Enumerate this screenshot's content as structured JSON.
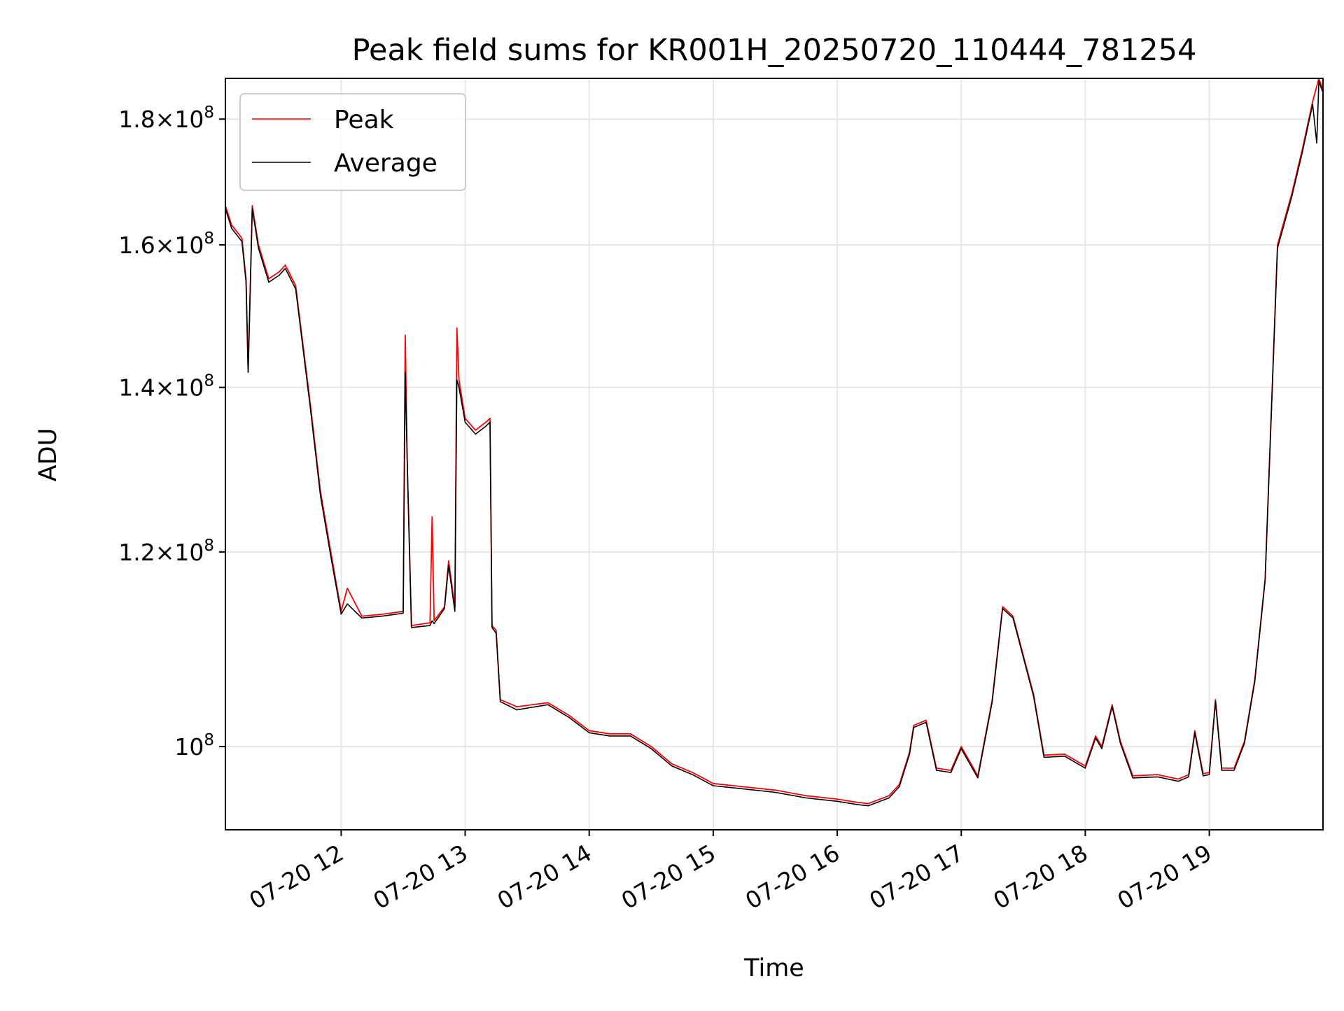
{
  "chart_data": {
    "type": "line",
    "title": "Peak field sums for KR001H_20250720_110444_781254",
    "xlabel": "Time",
    "ylabel": "ADU",
    "y_scale": "log",
    "xlim": [
      "2025-07-20 11:04",
      "2025-07-20 19:55"
    ],
    "ylim": [
      92500000,
      187000000
    ],
    "grid": true,
    "legend_position": "upper left",
    "x_tick_labels": [
      "07-20 12",
      "07-20 13",
      "07-20 14",
      "07-20 15",
      "07-20 16",
      "07-20 17",
      "07-20 18",
      "07-20 19"
    ],
    "y_ticks": [
      {
        "mantissa": "1.8",
        "exp": "8",
        "value": 180000000
      },
      {
        "mantissa": "1.6",
        "exp": "8",
        "value": 160000000
      },
      {
        "mantissa": "1.4",
        "exp": "8",
        "value": 140000000
      },
      {
        "mantissa": "1.2",
        "exp": "8",
        "value": 120000000
      },
      {
        "mantissa": "",
        "exp": "8",
        "value": 100000000
      }
    ],
    "series": [
      {
        "name": "Peak",
        "color": "#ff0000",
        "points": [
          [
            "2025-07-20 11:04",
            166000000
          ],
          [
            "2025-07-20 11:07",
            163000000
          ],
          [
            "2025-07-20 11:12",
            161000000
          ],
          [
            "2025-07-20 11:14",
            155000000
          ],
          [
            "2025-07-20 11:15",
            142000000
          ],
          [
            "2025-07-20 11:17",
            166000000
          ],
          [
            "2025-07-20 11:20",
            160000000
          ],
          [
            "2025-07-20 11:25",
            155000000
          ],
          [
            "2025-07-20 11:30",
            156000000
          ],
          [
            "2025-07-20 11:33",
            157000000
          ],
          [
            "2025-07-20 11:38",
            154000000
          ],
          [
            "2025-07-20 11:45",
            138000000
          ],
          [
            "2025-07-20 11:50",
            127000000
          ],
          [
            "2025-07-20 11:55",
            120000000
          ],
          [
            "2025-07-20 12:00",
            113500000
          ],
          [
            "2025-07-20 12:03",
            116000000
          ],
          [
            "2025-07-20 12:10",
            113000000
          ],
          [
            "2025-07-20 12:20",
            113200000
          ],
          [
            "2025-07-20 12:30",
            113500000
          ],
          [
            "2025-07-20 12:31",
            147000000
          ],
          [
            "2025-07-20 12:32",
            130000000
          ],
          [
            "2025-07-20 12:34",
            112000000
          ],
          [
            "2025-07-20 12:43",
            112300000
          ],
          [
            "2025-07-20 12:44",
            124000000
          ],
          [
            "2025-07-20 12:45",
            112500000
          ],
          [
            "2025-07-20 12:50",
            114000000
          ],
          [
            "2025-07-20 12:52",
            119000000
          ],
          [
            "2025-07-20 12:55",
            114000000
          ],
          [
            "2025-07-20 12:56",
            148000000
          ],
          [
            "2025-07-20 12:57",
            141000000
          ],
          [
            "2025-07-20 13:00",
            136000000
          ],
          [
            "2025-07-20 13:05",
            134500000
          ],
          [
            "2025-07-20 13:10",
            135500000
          ],
          [
            "2025-07-20 13:12",
            136000000
          ],
          [
            "2025-07-20 13:13",
            112000000
          ],
          [
            "2025-07-20 13:15",
            111500000
          ],
          [
            "2025-07-20 13:17",
            104500000
          ],
          [
            "2025-07-20 13:25",
            103800000
          ],
          [
            "2025-07-20 13:40",
            104200000
          ],
          [
            "2025-07-20 13:50",
            103000000
          ],
          [
            "2025-07-20 14:00",
            101500000
          ],
          [
            "2025-07-20 14:10",
            101200000
          ],
          [
            "2025-07-20 14:20",
            101200000
          ],
          [
            "2025-07-20 14:30",
            100000000
          ],
          [
            "2025-07-20 14:40",
            98400000
          ],
          [
            "2025-07-20 14:50",
            97600000
          ],
          [
            "2025-07-20 15:00",
            96600000
          ],
          [
            "2025-07-20 15:15",
            96300000
          ],
          [
            "2025-07-20 15:30",
            96000000
          ],
          [
            "2025-07-20 15:45",
            95500000
          ],
          [
            "2025-07-20 16:00",
            95200000
          ],
          [
            "2025-07-20 16:10",
            94900000
          ],
          [
            "2025-07-20 16:15",
            94800000
          ],
          [
            "2025-07-20 16:25",
            95500000
          ],
          [
            "2025-07-20 16:30",
            96500000
          ],
          [
            "2025-07-20 16:35",
            99500000
          ],
          [
            "2025-07-20 16:37",
            102000000
          ],
          [
            "2025-07-20 16:43",
            102500000
          ],
          [
            "2025-07-20 16:48",
            98000000
          ],
          [
            "2025-07-20 16:55",
            97800000
          ],
          [
            "2025-07-20 17:00",
            100000000
          ],
          [
            "2025-07-20 17:08",
            97300000
          ],
          [
            "2025-07-20 17:15",
            104500000
          ],
          [
            "2025-07-20 17:20",
            114000000
          ],
          [
            "2025-07-20 17:25",
            113000000
          ],
          [
            "2025-07-20 17:35",
            105000000
          ],
          [
            "2025-07-20 17:40",
            99200000
          ],
          [
            "2025-07-20 17:50",
            99300000
          ],
          [
            "2025-07-20 18:00",
            98200000
          ],
          [
            "2025-07-20 18:05",
            101000000
          ],
          [
            "2025-07-20 18:08",
            100000000
          ],
          [
            "2025-07-20 18:13",
            104000000
          ],
          [
            "2025-07-20 18:17",
            100500000
          ],
          [
            "2025-07-20 18:23",
            97300000
          ],
          [
            "2025-07-20 18:35",
            97400000
          ],
          [
            "2025-07-20 18:45",
            97000000
          ],
          [
            "2025-07-20 18:50",
            97400000
          ],
          [
            "2025-07-20 18:53",
            101500000
          ],
          [
            "2025-07-20 18:57",
            97500000
          ],
          [
            "2025-07-20 19:00",
            97600000
          ],
          [
            "2025-07-20 19:03",
            104500000
          ],
          [
            "2025-07-20 19:06",
            98000000
          ],
          [
            "2025-07-20 19:12",
            98000000
          ],
          [
            "2025-07-20 19:17",
            100500000
          ],
          [
            "2025-07-20 19:22",
            106500000
          ],
          [
            "2025-07-20 19:27",
            117000000
          ],
          [
            "2025-07-20 19:33",
            160000000
          ],
          [
            "2025-07-20 19:40",
            168000000
          ],
          [
            "2025-07-20 19:45",
            175000000
          ],
          [
            "2025-07-20 19:50",
            183000000
          ],
          [
            "2025-07-20 19:53",
            187000000
          ],
          [
            "2025-07-20 19:55",
            185000000
          ]
        ]
      },
      {
        "name": "Average",
        "color": "#000000",
        "points": [
          [
            "2025-07-20 11:04",
            165500000
          ],
          [
            "2025-07-20 11:07",
            162500000
          ],
          [
            "2025-07-20 11:12",
            160500000
          ],
          [
            "2025-07-20 11:14",
            154500000
          ],
          [
            "2025-07-20 11:15",
            142000000
          ],
          [
            "2025-07-20 11:17",
            165500000
          ],
          [
            "2025-07-20 11:20",
            159500000
          ],
          [
            "2025-07-20 11:25",
            154500000
          ],
          [
            "2025-07-20 11:30",
            155500000
          ],
          [
            "2025-07-20 11:33",
            156500000
          ],
          [
            "2025-07-20 11:38",
            153500000
          ],
          [
            "2025-07-20 11:45",
            137500000
          ],
          [
            "2025-07-20 11:50",
            126500000
          ],
          [
            "2025-07-20 11:55",
            119500000
          ],
          [
            "2025-07-20 12:00",
            113200000
          ],
          [
            "2025-07-20 12:03",
            114300000
          ],
          [
            "2025-07-20 12:10",
            112800000
          ],
          [
            "2025-07-20 12:20",
            113000000
          ],
          [
            "2025-07-20 12:30",
            113300000
          ],
          [
            "2025-07-20 12:31",
            142000000
          ],
          [
            "2025-07-20 12:32",
            130000000
          ],
          [
            "2025-07-20 12:34",
            111800000
          ],
          [
            "2025-07-20 12:43",
            112000000
          ],
          [
            "2025-07-20 12:44",
            112500000
          ],
          [
            "2025-07-20 12:45",
            112200000
          ],
          [
            "2025-07-20 12:50",
            113800000
          ],
          [
            "2025-07-20 12:52",
            118500000
          ],
          [
            "2025-07-20 12:55",
            113500000
          ],
          [
            "2025-07-20 12:56",
            141000000
          ],
          [
            "2025-07-20 12:57",
            140000000
          ],
          [
            "2025-07-20 13:00",
            135500000
          ],
          [
            "2025-07-20 13:05",
            134000000
          ],
          [
            "2025-07-20 13:10",
            135000000
          ],
          [
            "2025-07-20 13:12",
            135500000
          ],
          [
            "2025-07-20 13:13",
            111800000
          ],
          [
            "2025-07-20 13:15",
            111200000
          ],
          [
            "2025-07-20 13:17",
            104300000
          ],
          [
            "2025-07-20 13:25",
            103500000
          ],
          [
            "2025-07-20 13:40",
            104000000
          ],
          [
            "2025-07-20 13:50",
            102800000
          ],
          [
            "2025-07-20 14:00",
            101300000
          ],
          [
            "2025-07-20 14:10",
            101000000
          ],
          [
            "2025-07-20 14:20",
            101000000
          ],
          [
            "2025-07-20 14:30",
            99800000
          ],
          [
            "2025-07-20 14:40",
            98200000
          ],
          [
            "2025-07-20 14:50",
            97400000
          ],
          [
            "2025-07-20 15:00",
            96400000
          ],
          [
            "2025-07-20 15:15",
            96100000
          ],
          [
            "2025-07-20 15:30",
            95800000
          ],
          [
            "2025-07-20 15:45",
            95300000
          ],
          [
            "2025-07-20 16:00",
            95000000
          ],
          [
            "2025-07-20 16:10",
            94700000
          ],
          [
            "2025-07-20 16:15",
            94600000
          ],
          [
            "2025-07-20 16:25",
            95300000
          ],
          [
            "2025-07-20 16:30",
            96300000
          ],
          [
            "2025-07-20 16:35",
            99300000
          ],
          [
            "2025-07-20 16:37",
            101800000
          ],
          [
            "2025-07-20 16:43",
            102300000
          ],
          [
            "2025-07-20 16:48",
            97800000
          ],
          [
            "2025-07-20 16:55",
            97600000
          ],
          [
            "2025-07-20 17:00",
            99800000
          ],
          [
            "2025-07-20 17:08",
            97100000
          ],
          [
            "2025-07-20 17:15",
            104300000
          ],
          [
            "2025-07-20 17:20",
            113800000
          ],
          [
            "2025-07-20 17:25",
            112800000
          ],
          [
            "2025-07-20 17:35",
            104800000
          ],
          [
            "2025-07-20 17:40",
            99000000
          ],
          [
            "2025-07-20 17:50",
            99100000
          ],
          [
            "2025-07-20 18:00",
            98000000
          ],
          [
            "2025-07-20 18:05",
            100800000
          ],
          [
            "2025-07-20 18:08",
            99800000
          ],
          [
            "2025-07-20 18:13",
            103800000
          ],
          [
            "2025-07-20 18:17",
            100300000
          ],
          [
            "2025-07-20 18:23",
            97100000
          ],
          [
            "2025-07-20 18:35",
            97200000
          ],
          [
            "2025-07-20 18:45",
            96800000
          ],
          [
            "2025-07-20 18:50",
            97200000
          ],
          [
            "2025-07-20 18:53",
            101300000
          ],
          [
            "2025-07-20 18:57",
            97300000
          ],
          [
            "2025-07-20 19:00",
            97400000
          ],
          [
            "2025-07-20 19:03",
            104300000
          ],
          [
            "2025-07-20 19:06",
            97800000
          ],
          [
            "2025-07-20 19:12",
            97800000
          ],
          [
            "2025-07-20 19:17",
            100300000
          ],
          [
            "2025-07-20 19:22",
            106300000
          ],
          [
            "2025-07-20 19:27",
            116800000
          ],
          [
            "2025-07-20 19:33",
            159500000
          ],
          [
            "2025-07-20 19:40",
            167500000
          ],
          [
            "2025-07-20 19:45",
            174500000
          ],
          [
            "2025-07-20 19:50",
            182500000
          ],
          [
            "2025-07-20 19:52",
            176000000
          ],
          [
            "2025-07-20 19:53",
            186500000
          ],
          [
            "2025-07-20 19:55",
            184500000
          ]
        ]
      }
    ]
  }
}
